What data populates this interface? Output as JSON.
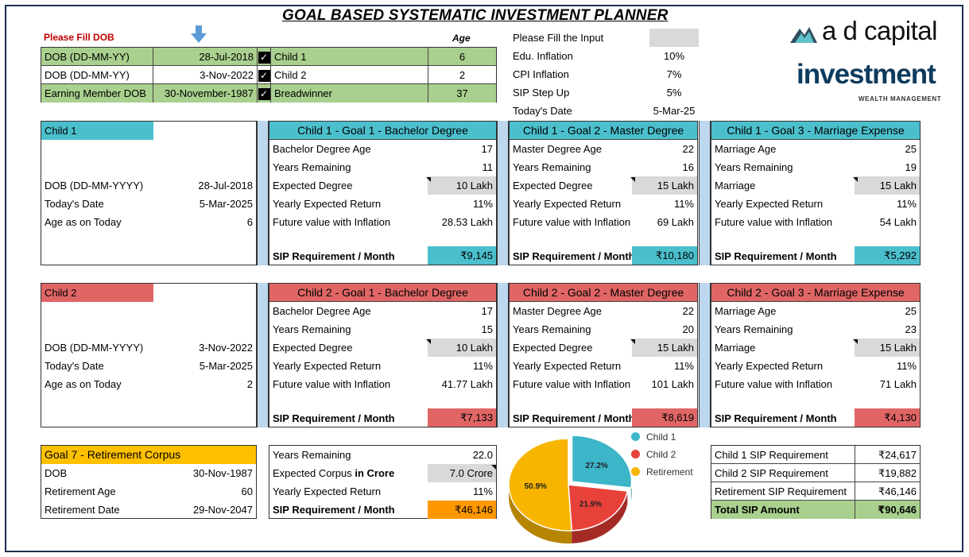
{
  "title": "GOAL BASED SYSTEMATIC INVESTMENT PLANNER",
  "dob_prompt": "Please Fill DOB",
  "age_header": "Age",
  "dob_rows": [
    {
      "label": "DOB (DD-MM-YY)",
      "value": "28-Jul-2018",
      "who": "Child 1",
      "age": "6"
    },
    {
      "label": "DOB (DD-MM-YY)",
      "value": "3-Nov-2022",
      "who": "Child 2",
      "age": "2"
    },
    {
      "label": "Earning Member DOB",
      "value": "30-November-1987",
      "who": "Breadwinner",
      "age": "37"
    }
  ],
  "inputs": {
    "prompt": "Please Fill the Input",
    "rows": [
      {
        "label": "Edu. Inflation",
        "value": "10%"
      },
      {
        "label": "CPI Inflation",
        "value": "7%"
      },
      {
        "label": "SIP Step Up",
        "value": "5%"
      },
      {
        "label": "Today's Date",
        "value": "5-Mar-25"
      }
    ]
  },
  "logo": {
    "line1": "a d capital",
    "line2": "investment",
    "line3": "WEALTH MANAGEMENT"
  },
  "children": [
    {
      "name": "Child 1",
      "info": [
        {
          "label": "DOB (DD-MM-YYYY)",
          "value": "28-Jul-2018"
        },
        {
          "label": "Today's Date",
          "value": "5-Mar-2025"
        },
        {
          "label": "Age as on Today",
          "value": "6"
        }
      ],
      "goals": [
        {
          "title": "Child 1 - Goal 1 - Bachelor Degree",
          "rows": [
            {
              "label": "Bachelor Degree Age",
              "value": "17"
            },
            {
              "label": "Years Remaining",
              "value": "11"
            },
            {
              "label": "Expected Degree",
              "value": "10 Lakh"
            },
            {
              "label": "Yearly Expected Return",
              "value": "11%"
            },
            {
              "label": "Future value with Inflation",
              "value": "28.53 Lakh"
            }
          ],
          "sip_label": "SIP Requirement / Month",
          "sip": "₹9,145"
        },
        {
          "title": "Child 1 - Goal 2 - Master Degree",
          "rows": [
            {
              "label": "Master Degree Age",
              "value": "22"
            },
            {
              "label": "Years Remaining",
              "value": "16"
            },
            {
              "label": "Expected Degree",
              "value": "15 Lakh"
            },
            {
              "label": "Yearly Expected Return",
              "value": "11%"
            },
            {
              "label": "Future value with Inflation",
              "value": "69 Lakh"
            }
          ],
          "sip_label": "SIP Requirement / Month",
          "sip": "₹10,180"
        },
        {
          "title": "Child 1 - Goal 3 - Marriage Expense",
          "rows": [
            {
              "label": "Marriage Age",
              "value": "25"
            },
            {
              "label": "Years Remaining",
              "value": "19"
            },
            {
              "label": "Marriage",
              "value": "15 Lakh"
            },
            {
              "label": "Yearly Expected Return",
              "value": "11%"
            },
            {
              "label": "Future value with Inflation",
              "value": "54 Lakh"
            }
          ],
          "sip_label": "SIP Requirement / Month",
          "sip": "₹5,292"
        }
      ]
    },
    {
      "name": "Child 2",
      "info": [
        {
          "label": "DOB (DD-MM-YYYY)",
          "value": "3-Nov-2022"
        },
        {
          "label": "Today's Date",
          "value": "5-Mar-2025"
        },
        {
          "label": "Age as on Today",
          "value": "2"
        }
      ],
      "goals": [
        {
          "title": "Child 2 - Goal 1 - Bachelor Degree",
          "rows": [
            {
              "label": "Bachelor Degree Age",
              "value": "17"
            },
            {
              "label": "Years Remaining",
              "value": "15"
            },
            {
              "label": "Expected Degree",
              "value": "10 Lakh"
            },
            {
              "label": "Yearly Expected Return",
              "value": "11%"
            },
            {
              "label": "Future value with Inflation",
              "value": "41.77 Lakh"
            }
          ],
          "sip_label": "SIP Requirement / Month",
          "sip": "₹7,133"
        },
        {
          "title": "Child 2 - Goal 2 - Master Degree",
          "rows": [
            {
              "label": "Master Degree Age",
              "value": "22"
            },
            {
              "label": "Years Remaining",
              "value": "20"
            },
            {
              "label": "Expected Degree",
              "value": "15 Lakh"
            },
            {
              "label": "Yearly Expected Return",
              "value": "11%"
            },
            {
              "label": "Future value with Inflation",
              "value": "101 Lakh"
            }
          ],
          "sip_label": "SIP Requirement / Month",
          "sip": "₹8,619"
        },
        {
          "title": "Child 2 - Goal 3 - Marriage Expense",
          "rows": [
            {
              "label": "Marriage Age",
              "value": "25"
            },
            {
              "label": "Years Remaining",
              "value": "23"
            },
            {
              "label": "Marriage",
              "value": "15 Lakh"
            },
            {
              "label": "Yearly Expected Return",
              "value": "11%"
            },
            {
              "label": "Future value with Inflation",
              "value": "71 Lakh"
            }
          ],
          "sip_label": "SIP Requirement / Month",
          "sip": "₹4,130"
        }
      ]
    }
  ],
  "retirement": {
    "title": "Goal 7 - Retirement Corpus",
    "info": [
      {
        "label": "DOB",
        "value": "30-Nov-1987"
      },
      {
        "label": "Retirement Age",
        "value": "60"
      },
      {
        "label": "Retirement Date",
        "value": "29-Nov-2047"
      }
    ],
    "rows": [
      {
        "label": "Years Remaining",
        "value": "22.0"
      },
      {
        "label_a": "Expected Corpus ",
        "label_b": "in Crore",
        "value": "7.0 Crore"
      },
      {
        "label": "Yearly Expected Return",
        "value": "11%"
      }
    ],
    "sip_label": "SIP Requirement / Month",
    "sip": "₹46,146"
  },
  "summary": {
    "rows": [
      {
        "label": "Child 1 SIP Requirement",
        "value": "₹24,617"
      },
      {
        "label": "Child 2 SIP Requirement",
        "value": "₹19,882"
      },
      {
        "label": "Retirement SIP Requirement",
        "value": "₹46,146"
      }
    ],
    "total_label": "Total SIP Amount",
    "total_value": "₹90,646"
  },
  "chart_data": {
    "type": "pie",
    "labels": [
      "Child 1",
      "Child 2",
      "Retirement"
    ],
    "values": [
      27.2,
      21.9,
      50.9
    ],
    "value_labels": [
      "27.2%",
      "21.9%",
      "50.9%"
    ],
    "colors": [
      "#3cb6c8",
      "#e8413a",
      "#f7b500"
    ],
    "legend": "right"
  }
}
